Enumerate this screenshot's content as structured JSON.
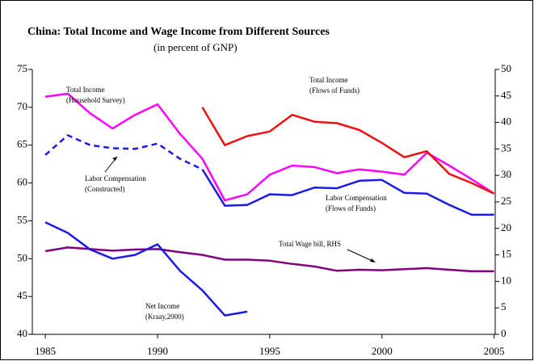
{
  "chart_data": {
    "type": "line",
    "title": "China: Total Income and Wage Income from Different Sources",
    "subtitle": "(in percent of GNP)",
    "x": [
      1985,
      1986,
      1987,
      1988,
      1989,
      1990,
      1991,
      1992,
      1993,
      1994,
      1995,
      1996,
      1997,
      1998,
      1999,
      2000,
      2001,
      2002,
      2003,
      2004,
      2005
    ],
    "xlim": [
      1984.42,
      2005.05
    ],
    "xticks": [
      1985,
      1990,
      1995,
      2000,
      2005
    ],
    "ylim": [
      40,
      75
    ],
    "yticks": [
      40,
      45,
      50,
      55,
      60,
      65,
      70,
      75
    ],
    "y2lim": [
      0,
      50
    ],
    "y2ticks": [
      0,
      5,
      10,
      15,
      20,
      25,
      30,
      35,
      40,
      45,
      50
    ],
    "grid": false,
    "series": [
      {
        "label": [
          "Total Income",
          "(Household Survey)"
        ],
        "color": "#ff00ff",
        "values": [
          71.4,
          71.8,
          69.2,
          67.2,
          69.0,
          70.4,
          66.5,
          63.2,
          57.7,
          58.5,
          61.1,
          62.3,
          62.1,
          61.3,
          61.8,
          61.5,
          61.1,
          64.0,
          62.3,
          60.5,
          58.6
        ]
      },
      {
        "label": [
          "Total Income",
          "(Flows of Funds)"
        ],
        "color": "#ee1111",
        "values": [
          null,
          null,
          null,
          null,
          null,
          null,
          null,
          70.0,
          65.0,
          66.2,
          66.8,
          69.0,
          68.1,
          67.9,
          67.0,
          65.3,
          63.4,
          64.2,
          61.2,
          60.0,
          58.6
        ]
      },
      {
        "label": [
          "Labor Compensation",
          "(Constructed)"
        ],
        "color": "#1a1aee",
        "dashed": true,
        "values": [
          63.7,
          66.3,
          65.0,
          64.6,
          64.5,
          65.2,
          63.2,
          61.8,
          null,
          null,
          null,
          null,
          null,
          null,
          null,
          null,
          null,
          null,
          null,
          null,
          null
        ]
      },
      {
        "label": [
          "Labor Compensation",
          "(Flows of Funds)"
        ],
        "color": "#1a1aee",
        "values": [
          null,
          null,
          null,
          null,
          null,
          null,
          null,
          61.8,
          57.0,
          57.1,
          58.5,
          58.4,
          59.4,
          59.3,
          60.3,
          60.4,
          58.7,
          58.6,
          57.1,
          55.8,
          55.8
        ]
      },
      {
        "label": [
          "Total Wage bill, RHS"
        ],
        "color": "#800080",
        "axis": "y2",
        "values": [
          15.7,
          16.4,
          16.1,
          15.8,
          16.0,
          16.1,
          15.5,
          15.0,
          14.1,
          14.1,
          13.9,
          13.3,
          12.8,
          12.0,
          12.2,
          12.1,
          12.3,
          12.5,
          12.2,
          11.9,
          11.9
        ]
      },
      {
        "label": [
          "Net Income",
          "(Kraay,2000)"
        ],
        "color": "#1a1aee",
        "values": [
          54.8,
          53.4,
          51.2,
          50.0,
          50.5,
          51.9,
          48.4,
          45.8,
          42.5,
          43.0,
          null,
          null,
          null,
          null,
          null,
          null,
          null,
          null,
          null,
          null,
          null
        ]
      }
    ]
  }
}
